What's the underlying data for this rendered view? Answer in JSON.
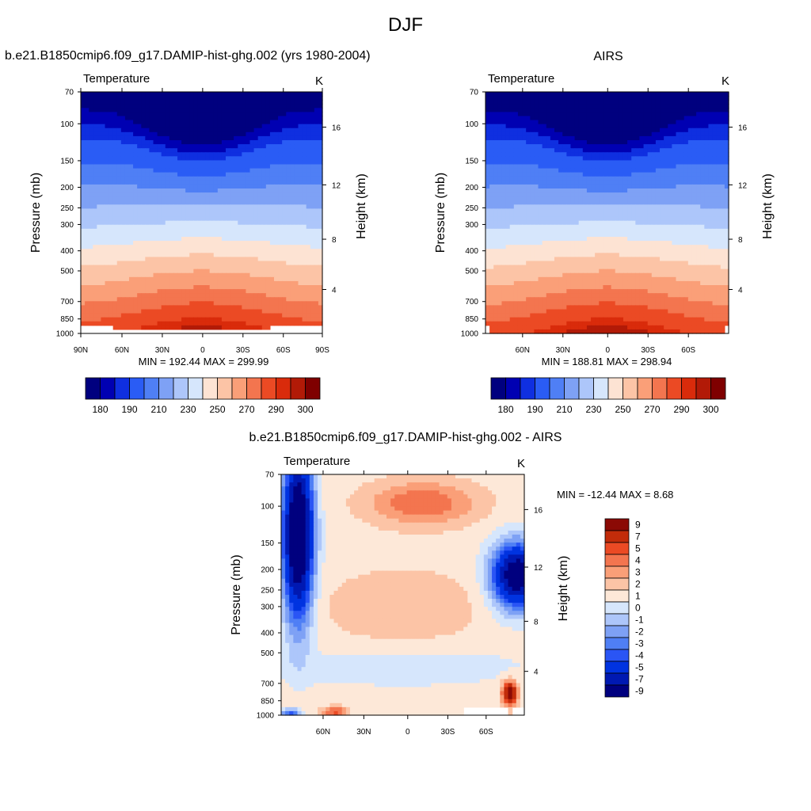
{
  "figure": {
    "title": "DJF"
  },
  "colors": {
    "temp_levels": [
      "#00007f",
      "#0000b2",
      "#0f2fe0",
      "#2a5cf5",
      "#4f7ff5",
      "#7ea1f5",
      "#adc6fa",
      "#d6e6fc",
      "#fde3d3",
      "#fcc4a6",
      "#fa9f78",
      "#f3754f",
      "#eb4a24",
      "#d92b0b",
      "#b21a07",
      "#7f0000"
    ],
    "diff_levels": [
      "#00007f",
      "#0019b2",
      "#0033e0",
      "#2a55f5",
      "#4f7ff5",
      "#7ea1f5",
      "#adc6fa",
      "#d6e6fc",
      "#fde8d8",
      "#fcc4a6",
      "#fa9f78",
      "#f3754f",
      "#eb4a24",
      "#c22c0a",
      "#8b0a05"
    ]
  },
  "panels": [
    {
      "id": "model",
      "title": "b.e21.B1850cmip6.f09_g17.DAMIP-hist-ghg.002 (yrs 1980-2004)",
      "left_label": "Temperature",
      "units": "K",
      "ylabel_left": "Pressure (mb)",
      "ylabel_right": "Height (km)",
      "pressure_ticks": [
        "70",
        "100",
        "150",
        "200",
        "250",
        "300",
        "400",
        "500",
        "700",
        "850",
        "1000"
      ],
      "height_ticks": [
        "16",
        "12",
        "8",
        "4"
      ],
      "lat_ticks": [
        "90N",
        "60N",
        "30N",
        "0",
        "30S",
        "60S",
        "90S"
      ],
      "minmax": "MIN = 192.44  MAX = 299.99",
      "colorbar_labels": [
        "180",
        "190",
        "210",
        "230",
        "250",
        "270",
        "290",
        "300"
      ]
    },
    {
      "id": "obs",
      "title": "AIRS",
      "left_label": "Temperature",
      "units": "K",
      "ylabel_left": "Pressure (mb)",
      "ylabel_right": "Height (km)",
      "pressure_ticks": [
        "70",
        "100",
        "150",
        "200",
        "250",
        "300",
        "400",
        "500",
        "700",
        "850",
        "1000"
      ],
      "height_ticks": [
        "16",
        "12",
        "8",
        "4"
      ],
      "lat_ticks": [
        "60N",
        "30N",
        "0",
        "30S",
        "60S"
      ],
      "minmax": "MIN = 188.81  MAX = 298.94",
      "colorbar_labels": [
        "180",
        "190",
        "210",
        "230",
        "250",
        "270",
        "290",
        "300"
      ]
    },
    {
      "id": "diff",
      "title": "b.e21.B1850cmip6.f09_g17.DAMIP-hist-ghg.002 - AIRS",
      "left_label": "Temperature",
      "units": "K",
      "ylabel_left": "Pressure (mb)",
      "ylabel_right": "Height (km)",
      "pressure_ticks": [
        "70",
        "100",
        "150",
        "200",
        "250",
        "300",
        "400",
        "500",
        "700",
        "850",
        "1000"
      ],
      "height_ticks": [
        "16",
        "12",
        "8",
        "4"
      ],
      "lat_ticks": [
        "60N",
        "30N",
        "0",
        "30S",
        "60S"
      ],
      "minmax": "MIN = -12.44  MAX =   8.68",
      "colorbar_labels": [
        "9",
        "7",
        "5",
        "4",
        "3",
        "2",
        "1",
        "0",
        "-1",
        "-2",
        "-3",
        "-4",
        "-5",
        "-7",
        "-9"
      ]
    }
  ],
  "chart_data": [
    {
      "type": "heatmap",
      "title": "b.e21.B1850cmip6.f09_g17.DAMIP-hist-ghg.002 (yrs 1980-2004)",
      "subtitle": "Temperature",
      "units": "K",
      "xlabel": "",
      "ylabel": "Pressure (mb)",
      "ylabel_right": "Height (km)",
      "x_ticks": [
        "90N",
        "60N",
        "30N",
        "0",
        "30S",
        "60S",
        "90S"
      ],
      "y_ticks": [
        "70",
        "100",
        "150",
        "200",
        "250",
        "300",
        "400",
        "500",
        "700",
        "850",
        "1000"
      ],
      "y_scale": "log",
      "contour_levels": [
        180,
        185,
        190,
        200,
        210,
        220,
        230,
        240,
        250,
        260,
        270,
        280,
        290,
        295,
        300
      ],
      "min": 192.44,
      "max": 299.99
    },
    {
      "type": "heatmap",
      "title": "AIRS",
      "subtitle": "Temperature",
      "units": "K",
      "xlabel": "",
      "ylabel": "Pressure (mb)",
      "ylabel_right": "Height (km)",
      "x_ticks": [
        "60N",
        "30N",
        "0",
        "30S",
        "60S"
      ],
      "y_ticks": [
        "70",
        "100",
        "150",
        "200",
        "250",
        "300",
        "400",
        "500",
        "700",
        "850",
        "1000"
      ],
      "y_scale": "log",
      "contour_levels": [
        180,
        185,
        190,
        200,
        210,
        220,
        230,
        240,
        250,
        260,
        270,
        280,
        290,
        295,
        300
      ],
      "min": 188.81,
      "max": 298.94
    },
    {
      "type": "heatmap",
      "title": "b.e21.B1850cmip6.f09_g17.DAMIP-hist-ghg.002 - AIRS",
      "subtitle": "Temperature",
      "units": "K",
      "xlabel": "",
      "ylabel": "Pressure (mb)",
      "ylabel_right": "Height (km)",
      "x_ticks": [
        "60N",
        "30N",
        "0",
        "30S",
        "60S"
      ],
      "y_ticks": [
        "70",
        "100",
        "150",
        "200",
        "250",
        "300",
        "400",
        "500",
        "700",
        "850",
        "1000"
      ],
      "y_scale": "log",
      "contour_levels": [
        -9,
        -7,
        -5,
        -4,
        -3,
        -2,
        -1,
        0,
        1,
        2,
        3,
        4,
        5,
        7,
        9
      ],
      "min": -12.44,
      "max": 8.68
    }
  ]
}
